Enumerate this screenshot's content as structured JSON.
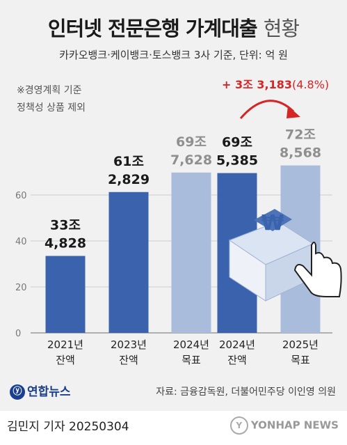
{
  "header": {
    "title_bold": "인터넷 전문은행 가계대출",
    "title_light": "현황",
    "subtitle": "카카오뱅크·케이뱅크·토스뱅크 3사 기준, 단위: 억 원"
  },
  "note": {
    "line1": "※경영계획 기준",
    "line2": "정책성 상품 제외"
  },
  "annotation": {
    "growth_prefix": "+ 3조 3,183",
    "growth_pct": "(4.8%)"
  },
  "colors": {
    "actual_bar": "#3a62ad",
    "target_bar": "#a9bcdc",
    "actual_label": "#1a1a1a",
    "target_label": "#8f8f8f",
    "arrow": "#d62525",
    "grid": "#cdcdcd"
  },
  "chart_data": {
    "type": "bar",
    "unit": "억 원",
    "ylim": [
      0,
      80
    ],
    "yticks": [
      0,
      20,
      40,
      60
    ],
    "grid": true,
    "categories": [
      {
        "line1": "2021년",
        "line2": "잔액"
      },
      {
        "line1": "2023년",
        "line2": "잔액"
      },
      {
        "line1": "2024년",
        "line2": "목표"
      },
      {
        "line1": "2024년",
        "line2": "잔액"
      },
      {
        "line1": "2025년",
        "line2": "목표"
      }
    ],
    "values": [
      334828,
      612829,
      697628,
      695385,
      728568
    ],
    "kinds": [
      "actual",
      "actual",
      "target",
      "actual",
      "target"
    ],
    "value_labels": [
      {
        "line1": "33조",
        "line2": "4,828"
      },
      {
        "line1": "61조",
        "line2": "2,829"
      },
      {
        "line1": "69조",
        "line2": "7,628"
      },
      {
        "line1": "69조",
        "line2": "5,385"
      },
      {
        "line1": "72조",
        "line2": "8,568"
      }
    ]
  },
  "footer": {
    "logo_text": "연합뉴스",
    "source": "자료: 금융감독원, 더불어민주당 이인영 의원",
    "byline": "김민지 기자  20250304",
    "agency": "YONHAP NEWS"
  }
}
